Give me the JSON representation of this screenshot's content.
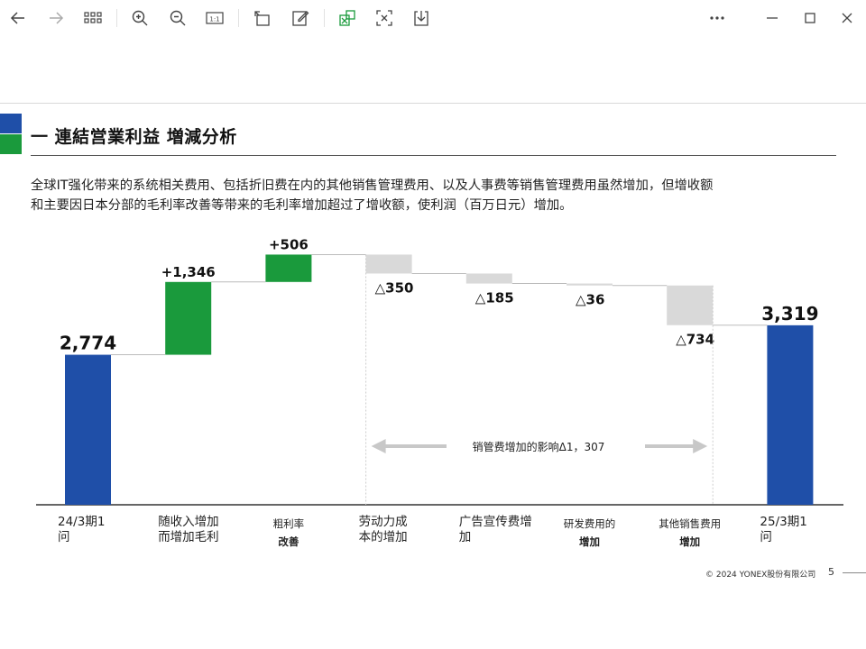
{
  "viewer": {
    "toolbar_icons": [
      "back-arrow-icon",
      "forward-arrow-icon",
      "grid-view-icon",
      "zoom-in-icon",
      "zoom-out-icon",
      "actual-size-icon",
      "rotate-icon",
      "edit-icon",
      "translate-excel-icon",
      "ocr-text-icon",
      "download-icon",
      "more-icon",
      "minimize-icon",
      "maximize-icon",
      "close-icon"
    ],
    "zoom_label": "1:1",
    "accent_green": "#1a9a3c"
  },
  "slide": {
    "title": "一 連結営業利益   増減分析",
    "description_line1": "全球IT强化带来的系统相关费用、包括折旧费在内的其他销售管理费用、以及人事费等销售管理费用虽然增加，但增收额",
    "description_line2": "和主要因日本分部的毛利率改善等带来的毛利率增加超过了增收额，使利润（百万日元）增加。",
    "footer_copyright": "© 2024 YONEX股份有限公司",
    "footer_page": "5"
  },
  "chart_data": {
    "type": "waterfall",
    "unit": "百万日元",
    "bars": [
      {
        "category_line1": "24/3期1",
        "category_line2": "问",
        "value": 2774,
        "label": "2,774",
        "kind": "total"
      },
      {
        "category_line1": "随收入增加",
        "category_line2": "而增加毛利",
        "value": 1346,
        "label": "+1,346",
        "kind": "increase"
      },
      {
        "category_line1": "粗利率",
        "category_line2": "改善",
        "value": 506,
        "label": "+506",
        "kind": "increase"
      },
      {
        "category_line1": "劳动力成",
        "category_line2": "本的增加",
        "value": -350,
        "label": "△350",
        "kind": "decrease"
      },
      {
        "category_line1": "广告宣传费增",
        "category_line2": "加",
        "value": -185,
        "label": "△185",
        "kind": "decrease"
      },
      {
        "category_line1": "研发费用的",
        "category_line2": "增加",
        "value": -36,
        "label": "△36",
        "kind": "decrease"
      },
      {
        "category_line1": "其他销售费用",
        "category_line2": "增加",
        "value": -734,
        "label": "△734",
        "kind": "decrease"
      },
      {
        "category_line1": "25/3期1",
        "category_line2": "问",
        "value": 3319,
        "label": "3,319",
        "kind": "total"
      }
    ],
    "annotation": "销管费增加的影响Δ1，307",
    "colors": {
      "total": "#1f4fa8",
      "increase": "#1a9a3c",
      "decrease": "#d9d9d9",
      "arrow": "#c8c8c8"
    }
  }
}
